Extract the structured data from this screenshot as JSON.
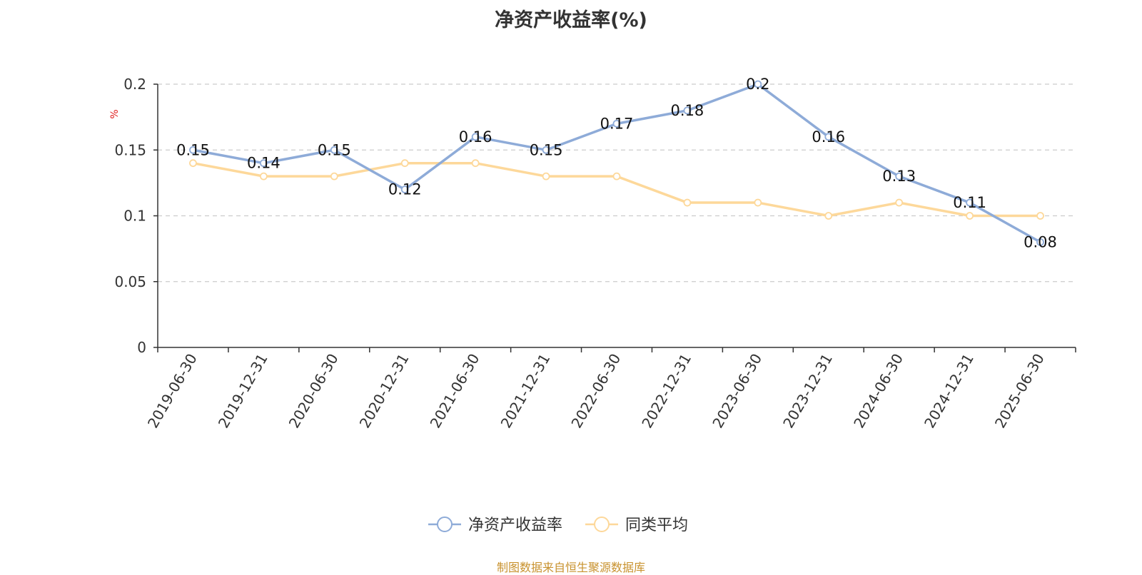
{
  "title": "净资产收益率(%)",
  "footer": "制图数据来自恒生聚源数据库",
  "chart_data": {
    "type": "line",
    "title": "净资产收益率(%)",
    "ylabel": "%",
    "ylim": [
      0,
      0.2
    ],
    "yticks": [
      0,
      0.05,
      0.1,
      0.15,
      0.2
    ],
    "yticklabels": [
      "0",
      "0.05",
      "0.1",
      "0.15",
      "0.2"
    ],
    "grid": true,
    "legend_position": "bottom",
    "categories": [
      "2019-06-30",
      "2019-12-31",
      "2020-06-30",
      "2020-12-31",
      "2021-06-30",
      "2021-12-31",
      "2022-06-30",
      "2022-12-31",
      "2023-06-30",
      "2023-12-31",
      "2024-06-30",
      "2024-12-31",
      "2025-06-30"
    ],
    "series": [
      {
        "name": "净资产收益率",
        "color": "#8eabd8",
        "values": [
          0.15,
          0.14,
          0.15,
          0.12,
          0.16,
          0.15,
          0.17,
          0.18,
          0.2,
          0.16,
          0.13,
          0.11,
          0.08
        ],
        "labels": [
          "0.15",
          "0.14",
          "0.15",
          "0.12",
          "0.16",
          "0.15",
          "0.17",
          "0.18",
          "0.2",
          "0.16",
          "0.13",
          "0.11",
          "0.08"
        ],
        "show_labels": true
      },
      {
        "name": "同类平均",
        "color": "#fdd89a",
        "values": [
          0.14,
          0.13,
          0.13,
          0.14,
          0.14,
          0.13,
          0.13,
          0.11,
          0.11,
          0.1,
          0.11,
          0.1,
          0.1
        ],
        "show_labels": false
      }
    ]
  }
}
